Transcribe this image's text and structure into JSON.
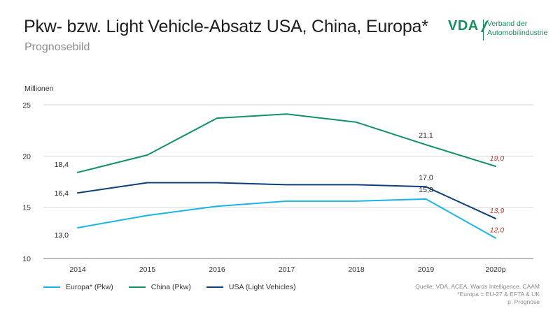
{
  "header": {
    "title": "Pkw- bzw. Light Vehicle-Absatz USA, China, Europa*",
    "subtitle": "Prognosebild"
  },
  "logo": {
    "mark": "VDA",
    "line1": "Verband der",
    "line2": "Automobilindustrie"
  },
  "colors": {
    "europa": "#1ab4e6",
    "china": "#13906c",
    "usa": "#0d3f7a",
    "forecast_label": "#c0392b",
    "grid": "#d6d6d6",
    "axis": "#777777"
  },
  "chart_data": {
    "type": "line",
    "title": "Pkw- bzw. Light Vehicle-Absatz USA, China, Europa*",
    "subtitle": "Prognosebild",
    "ylabel": "Millionen",
    "xlabel": "",
    "categories": [
      "2014",
      "2015",
      "2016",
      "2017",
      "2018",
      "2019",
      "2020p"
    ],
    "ylim": [
      10,
      25
    ],
    "yticks": [
      10,
      15,
      20,
      25
    ],
    "grid": true,
    "legend_position": "bottom-left",
    "series": [
      {
        "key": "europa",
        "name": "Europa* (Pkw)",
        "values": [
          13.0,
          14.2,
          15.1,
          15.6,
          15.6,
          15.8,
          12.0
        ],
        "labels": [
          {
            "index": 0,
            "text": "13,0",
            "forecast": false,
            "pos": "below-left"
          },
          {
            "index": 5,
            "text": "15,8",
            "forecast": false,
            "pos": "above"
          },
          {
            "index": 6,
            "text": "12,0",
            "forecast": true,
            "pos": "above-right"
          }
        ]
      },
      {
        "key": "china",
        "name": "China (Pkw)",
        "values": [
          18.4,
          20.1,
          23.7,
          24.1,
          23.3,
          21.1,
          19.0
        ],
        "labels": [
          {
            "index": 0,
            "text": "18,4",
            "forecast": false,
            "pos": "above-left"
          },
          {
            "index": 5,
            "text": "21,1",
            "forecast": false,
            "pos": "above"
          },
          {
            "index": 6,
            "text": "19,0",
            "forecast": true,
            "pos": "above-right"
          }
        ]
      },
      {
        "key": "usa",
        "name": "USA (Light Vehicles)",
        "values": [
          16.4,
          17.4,
          17.4,
          17.2,
          17.2,
          17.0,
          13.9
        ],
        "labels": [
          {
            "index": 0,
            "text": "16,4",
            "forecast": false,
            "pos": "left"
          },
          {
            "index": 5,
            "text": "17,0",
            "forecast": false,
            "pos": "above"
          },
          {
            "index": 6,
            "text": "13,9",
            "forecast": true,
            "pos": "above-right"
          }
        ]
      }
    ]
  },
  "source": {
    "line1": "Quelle: VDA, ACEA, Wards Intelligence, CAAM",
    "line2": "*Europa = EU-27 & EFTA & UK",
    "line3": "p: Prognose"
  }
}
